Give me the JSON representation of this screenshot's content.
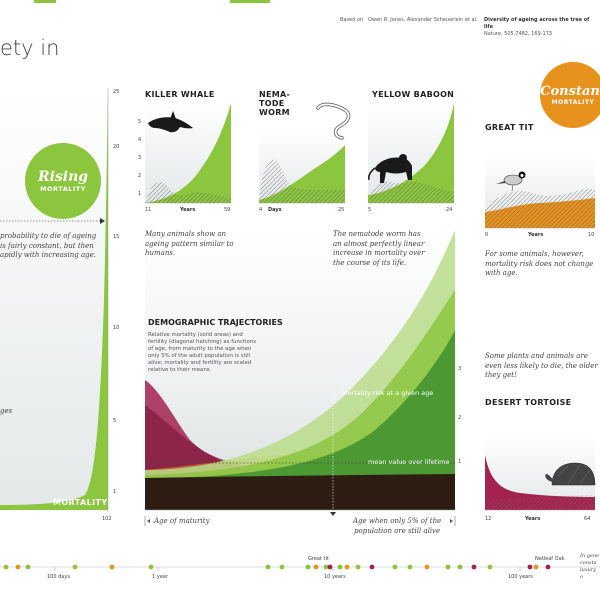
{
  "header": {
    "title_fragment": "ety in",
    "based_on_label": "Based on",
    "authors": "Owen R. Jones, Alexander Scheuerlein et al.",
    "article_title": "Diversity of ageing across the tree of life",
    "citation": "Nature, 505,7482, 169-173"
  },
  "badges": {
    "rising": {
      "big": "Rising",
      "small": "MORTALITY",
      "color": "#8cc63f"
    },
    "constant": {
      "big": "Constant",
      "small": "MORTALITY",
      "color": "#e8921e"
    }
  },
  "left_panel": {
    "note_lines": [
      "probability to die of ageing",
      "is fairly constant, but then",
      "apidly with increasing age."
    ],
    "stub_text": "ges",
    "label": "MORTALITY",
    "x_tick": "102",
    "y_ticks": [
      "25",
      "20",
      "15",
      "10",
      "5",
      "1"
    ]
  },
  "panels": {
    "killer_whale": {
      "title": "KILLER WHALE",
      "x_start": "11",
      "x_end": "59",
      "x_label": "Years",
      "y_ticks": [
        "5",
        "4",
        "3",
        "2",
        "1"
      ]
    },
    "nematode_worm": {
      "title_lines": [
        "NEMA-",
        "TODE",
        "WORM"
      ],
      "x_start": "4",
      "x_end": "25",
      "x_label": "Days"
    },
    "yellow_baboon": {
      "title": "YELLOW BABOON",
      "x_start": "5",
      "x_end": "24"
    },
    "great_tit": {
      "title": "GREAT TIT",
      "x_start": "0",
      "x_end": "10",
      "x_label": "Years"
    },
    "desert_tortoise": {
      "title": "DESERT TORTOISE",
      "x_start": "12",
      "x_end": "64",
      "x_label": "Years"
    }
  },
  "notes": {
    "killer_whale": [
      "Many animals show an",
      "ageing pattern similar to",
      "humans."
    ],
    "nematode": [
      "The nematode worm has",
      "an almost perfectly linear",
      "increase in mortality over",
      "the course of its life."
    ],
    "great_tit": [
      "For some animals, however,",
      "mortality risk does not change",
      "with age."
    ],
    "tortoise": [
      "Some plants and animals are",
      "even less likely to die, the older",
      "they get!"
    ],
    "bottom_right": [
      "In gene",
      "consta",
      "luxury o"
    ]
  },
  "demographic": {
    "title": "DEMOGRAPHIC TRAJECTORIES",
    "text_lines": [
      "Relative mortality (solid areas) and",
      "fertility (diagonal hatching) as functions",
      "of age, from maturity to the age when",
      "only 5% of the adult population is still",
      "alive; mortality and fertility are scaled",
      "relative to their means."
    ],
    "mortality_risk_label": "Mortality risk at a given age",
    "mean_label": "mean value over lifetime",
    "right_ticks": [
      "3",
      "2",
      "1"
    ],
    "age_of_maturity": "Age of maturity",
    "age_five_percent_lines": [
      "Age when only 5% of the",
      "population are still alive"
    ]
  },
  "timeline": {
    "labels": [
      "100 days",
      "1 year",
      "10 years",
      "100 years"
    ],
    "species_labels": [
      "Great tit",
      "Netleaf Oak"
    ]
  },
  "colors": {
    "green": "#8cc63f",
    "dark_green": "#3f8f2f",
    "orange": "#e8921e",
    "crimson": "#a3224f",
    "dark_brown": "#2a1010"
  }
}
